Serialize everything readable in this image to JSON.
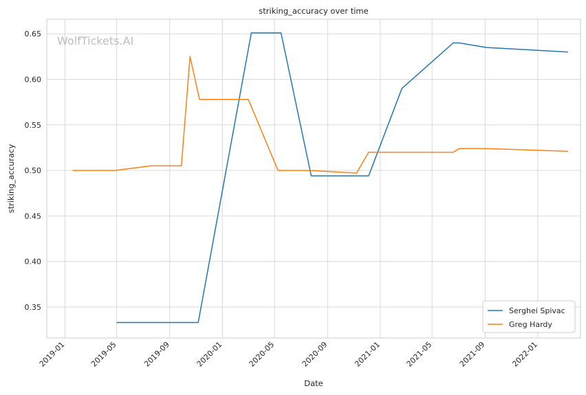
{
  "watermark": "WolfTickets.AI",
  "chart_data": {
    "type": "line",
    "title": "striking_accuracy over time",
    "xlabel": "Date",
    "ylabel": "striking_accuracy",
    "xlim": [
      "2018-11-20",
      "2022-04-10"
    ],
    "ylim": [
      0.316,
      0.666
    ],
    "yticks": [
      0.35,
      0.4,
      0.45,
      0.5,
      0.55,
      0.6,
      0.65
    ],
    "xticks": [
      "2019-01",
      "2019-05",
      "2019-09",
      "2020-01",
      "2020-05",
      "2020-09",
      "2021-01",
      "2021-05",
      "2021-09",
      "2022-01"
    ],
    "grid": true,
    "legend_position": "bottom-right",
    "series": [
      {
        "name": "Serghei Spivac",
        "color": "#1f77b4",
        "x": [
          "2019-05-01",
          "2019-11-06",
          "2020-03-08",
          "2020-05-16",
          "2020-07-25",
          "2020-12-05",
          "2021-02-20",
          "2021-06-19",
          "2021-07-03",
          "2021-09-04",
          "2022-03-12"
        ],
        "y": [
          0.333,
          0.333,
          0.651,
          0.651,
          0.494,
          0.494,
          0.59,
          0.64,
          0.64,
          0.635,
          0.63
        ]
      },
      {
        "name": "Greg Hardy",
        "color": "#ff7f0e",
        "x": [
          "2019-01-19",
          "2019-04-27",
          "2019-07-20",
          "2019-09-28",
          "2019-10-18",
          "2019-11-09",
          "2020-03-01",
          "2020-05-09",
          "2020-07-25",
          "2020-11-07",
          "2020-12-05",
          "2021-06-19",
          "2021-07-03",
          "2021-09-04",
          "2022-03-12"
        ],
        "y": [
          0.5,
          0.5,
          0.505,
          0.505,
          0.625,
          0.578,
          0.578,
          0.5,
          0.5,
          0.497,
          0.52,
          0.52,
          0.524,
          0.524,
          0.521
        ]
      }
    ]
  }
}
